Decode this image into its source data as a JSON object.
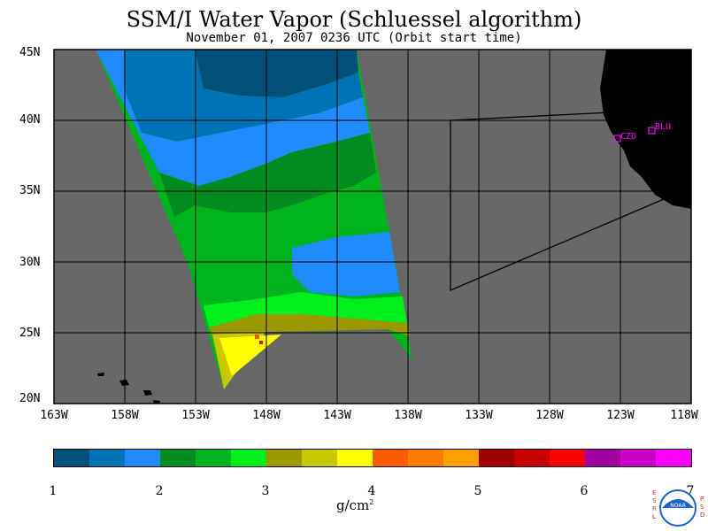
{
  "title": "SSM/I Water Vapor (Schluessel algorithm)",
  "subtitle": "November 01, 2007  0236 UTC  (Orbit start time)",
  "lat_labels": [
    "45N",
    "40N",
    "35N",
    "30N",
    "25N",
    "20N"
  ],
  "lon_labels": [
    "163W",
    "158W",
    "153W",
    "148W",
    "143W",
    "138W",
    "133W",
    "128W",
    "123W",
    "118W"
  ],
  "stations": [
    {
      "label": "CZD",
      "color": "#ff00ff"
    },
    {
      "label": "BLU",
      "color": "#ff00ff"
    }
  ],
  "colorbar": {
    "colors": [
      "#00507a",
      "#0073b4",
      "#1e8cff",
      "#008c1e",
      "#00b41e",
      "#00f01e",
      "#9c9800",
      "#c8c800",
      "#ffff00",
      "#ff5a00",
      "#ff7d00",
      "#ffa000",
      "#a00000",
      "#c80000",
      "#ff0000",
      "#a000a0",
      "#c800c8",
      "#ff00ff"
    ],
    "ticks": [
      "1",
      "2",
      "3",
      "4",
      "5",
      "6",
      "7"
    ],
    "units": "g/cm",
    "units_sup": "2"
  },
  "logo": {
    "left_text": "ESRL",
    "right_text": "PSD",
    "center_text": "NOAA"
  },
  "map_colors": {
    "ocean": "#686868",
    "land": "#000000",
    "frame": "#000000"
  }
}
